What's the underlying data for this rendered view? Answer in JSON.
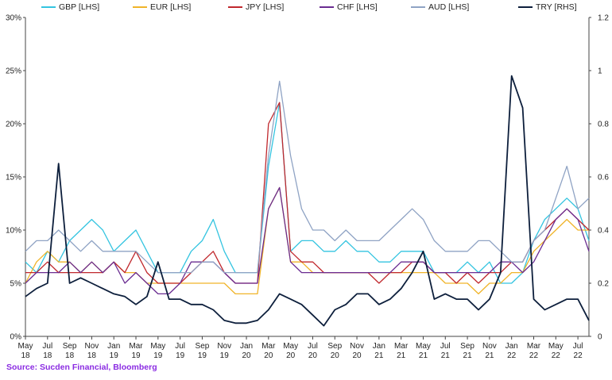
{
  "chart_data": {
    "type": "line",
    "title": "",
    "xlabel": "",
    "ylabel": "",
    "ylim_lhs": [
      0,
      30
    ],
    "ylim_rhs": [
      0,
      1.2
    ],
    "yticks_lhs": [
      "0%",
      "5%",
      "10%",
      "15%",
      "20%",
      "25%",
      "30%"
    ],
    "yticks_rhs": [
      "0",
      "0.2",
      "0.4",
      "0.6",
      "0.8",
      "1",
      "1.2"
    ],
    "x_ticks": [
      {
        "m": "May",
        "y": "18"
      },
      {
        "m": "Jul",
        "y": "18"
      },
      {
        "m": "Sep",
        "y": "18"
      },
      {
        "m": "Nov",
        "y": "18"
      },
      {
        "m": "Jan",
        "y": "19"
      },
      {
        "m": "Mar",
        "y": "19"
      },
      {
        "m": "May",
        "y": "19"
      },
      {
        "m": "Jul",
        "y": "19"
      },
      {
        "m": "Sep",
        "y": "19"
      },
      {
        "m": "Nov",
        "y": "19"
      },
      {
        "m": "Jan",
        "y": "20"
      },
      {
        "m": "Mar",
        "y": "20"
      },
      {
        "m": "May",
        "y": "20"
      },
      {
        "m": "Jul",
        "y": "20"
      },
      {
        "m": "Sep",
        "y": "20"
      },
      {
        "m": "Nov",
        "y": "20"
      },
      {
        "m": "Jan",
        "y": "21"
      },
      {
        "m": "Mar",
        "y": "21"
      },
      {
        "m": "May",
        "y": "21"
      },
      {
        "m": "Jul",
        "y": "21"
      },
      {
        "m": "Sep",
        "y": "21"
      },
      {
        "m": "Nov",
        "y": "21"
      },
      {
        "m": "Jan",
        "y": "22"
      },
      {
        "m": "Mar",
        "y": "22"
      },
      {
        "m": "May",
        "y": "22"
      },
      {
        "m": "Jul",
        "y": "22"
      }
    ],
    "x_dates": [
      "2018-05",
      "2018-06",
      "2018-07",
      "2018-08",
      "2018-09",
      "2018-10",
      "2018-11",
      "2018-12",
      "2019-01",
      "2019-02",
      "2019-03",
      "2019-04",
      "2019-05",
      "2019-06",
      "2019-07",
      "2019-08",
      "2019-09",
      "2019-10",
      "2019-11",
      "2019-12",
      "2020-01",
      "2020-02",
      "2020-03",
      "2020-04",
      "2020-05",
      "2020-06",
      "2020-07",
      "2020-08",
      "2020-09",
      "2020-10",
      "2020-11",
      "2020-12",
      "2021-01",
      "2021-02",
      "2021-03",
      "2021-04",
      "2021-05",
      "2021-06",
      "2021-07",
      "2021-08",
      "2021-09",
      "2021-10",
      "2021-11",
      "2021-12",
      "2022-01",
      "2022-02",
      "2022-03",
      "2022-04",
      "2022-05",
      "2022-06",
      "2022-07",
      "2022-08"
    ],
    "series": [
      {
        "name": "GBP [LHS]",
        "axis": "lhs",
        "color": "#33c4e0",
        "values": [
          7,
          6,
          8,
          7,
          9,
          10,
          11,
          10,
          8,
          9,
          10,
          8,
          6,
          6,
          6,
          8,
          9,
          11,
          8,
          6,
          6,
          6,
          16,
          22,
          8,
          9,
          9,
          8,
          8,
          9,
          8,
          8,
          7,
          7,
          8,
          8,
          8,
          6,
          6,
          6,
          7,
          6,
          7,
          5,
          5,
          6,
          9,
          11,
          12,
          13,
          12,
          9
        ]
      },
      {
        "name": "EUR [LHS]",
        "axis": "lhs",
        "color": "#f0b429",
        "values": [
          5,
          7,
          8,
          7,
          7,
          6,
          7,
          6,
          7,
          6,
          6,
          5,
          5,
          5,
          5,
          5,
          5,
          5,
          5,
          4,
          4,
          4,
          12,
          14,
          7,
          7,
          6,
          6,
          6,
          6,
          6,
          6,
          6,
          6,
          6,
          6,
          6,
          6,
          5,
          5,
          5,
          4,
          5,
          5,
          6,
          6,
          8,
          9,
          10,
          11,
          10,
          10
        ]
      },
      {
        "name": "JPY [LHS]",
        "axis": "lhs",
        "color": "#c0282d",
        "values": [
          6,
          6,
          7,
          6,
          6,
          6,
          6,
          6,
          7,
          6,
          8,
          6,
          5,
          5,
          5,
          6,
          7,
          8,
          6,
          5,
          5,
          5,
          20,
          22,
          8,
          7,
          7,
          6,
          6,
          6,
          6,
          6,
          5,
          6,
          6,
          7,
          7,
          6,
          6,
          5,
          6,
          5,
          6,
          6,
          7,
          7,
          9,
          10,
          11,
          12,
          11,
          10
        ]
      },
      {
        "name": "CHF [LHS]",
        "axis": "lhs",
        "color": "#6a2c91",
        "values": [
          5,
          6,
          6,
          6,
          7,
          6,
          7,
          6,
          7,
          5,
          6,
          5,
          4,
          4,
          5,
          7,
          7,
          7,
          6,
          5,
          5,
          5,
          12,
          14,
          7,
          6,
          6,
          6,
          6,
          6,
          6,
          6,
          6,
          6,
          7,
          7,
          7,
          6,
          6,
          6,
          6,
          6,
          6,
          7,
          7,
          6,
          7,
          9,
          11,
          12,
          11,
          8
        ]
      },
      {
        "name": "AUD [LHS]",
        "axis": "lhs",
        "color": "#8fa3c4",
        "values": [
          8,
          9,
          9,
          10,
          9,
          8,
          9,
          8,
          8,
          8,
          8,
          7,
          6,
          6,
          6,
          6,
          7,
          7,
          6,
          6,
          6,
          6,
          17,
          24,
          17,
          12,
          10,
          10,
          9,
          10,
          9,
          9,
          9,
          10,
          11,
          12,
          11,
          9,
          8,
          8,
          8,
          9,
          9,
          8,
          7,
          7,
          9,
          10,
          13,
          16,
          12,
          13
        ]
      },
      {
        "name": "TRY [RHS]",
        "axis": "rhs",
        "color": "#0d1f3c",
        "values": [
          0.15,
          0.18,
          0.2,
          0.65,
          0.2,
          0.22,
          0.2,
          0.18,
          0.16,
          0.15,
          0.12,
          0.15,
          0.28,
          0.14,
          0.14,
          0.12,
          0.12,
          0.1,
          0.06,
          0.05,
          0.05,
          0.06,
          0.1,
          0.16,
          0.14,
          0.12,
          0.08,
          0.04,
          0.1,
          0.12,
          0.16,
          0.16,
          0.12,
          0.14,
          0.18,
          0.24,
          0.32,
          0.14,
          0.16,
          0.14,
          0.14,
          0.1,
          0.14,
          0.24,
          0.98,
          0.86,
          0.14,
          0.1,
          0.12,
          0.14,
          0.14,
          0.06
        ]
      }
    ],
    "legend_position": "top",
    "source": "Source: Sucden Financial, Bloomberg"
  }
}
